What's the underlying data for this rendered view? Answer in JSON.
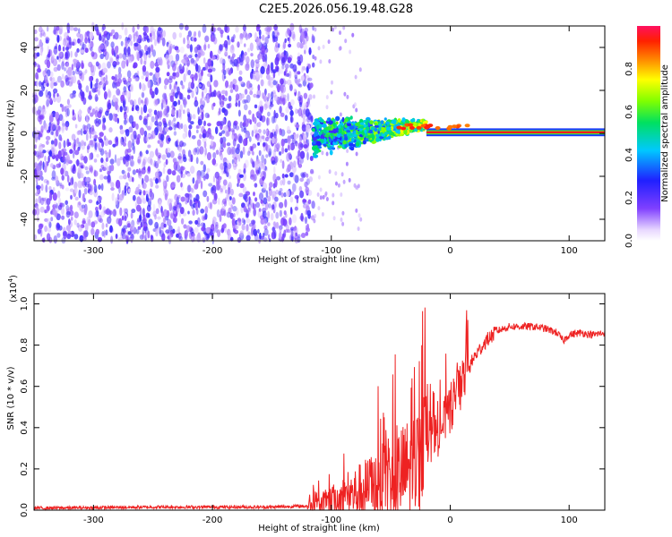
{
  "title": "C2E5.2026.056.19.48.G28",
  "chart_data": [
    {
      "type": "heatmap",
      "xlabel": "Height of straight line (km)",
      "ylabel": "Frequency (Hz)",
      "xlim": [
        -350,
        130
      ],
      "ylim": [
        -50,
        50
      ],
      "x_ticks": [
        -300,
        -200,
        -100,
        0,
        100
      ],
      "y_ticks": [
        -40,
        -20,
        0,
        20,
        40
      ],
      "regions": [
        {
          "x_range": [
            -350,
            -115
          ],
          "freq_range": [
            -50,
            50
          ],
          "amplitude": [
            0.05,
            0.25
          ],
          "description": "broadband noise"
        },
        {
          "x_range": [
            -115,
            -20
          ],
          "freq_center_start": -2,
          "freq_center_end": 4,
          "spread_hz": 10,
          "amplitude": [
            0.2,
            0.6
          ]
        },
        {
          "x_range": [
            -20,
            130
          ],
          "freq_center": 0.5,
          "spread_hz": 2,
          "amplitude": [
            0.85,
            0.95
          ],
          "description": "carrier line"
        }
      ],
      "colorbar": {
        "label": "Normalized spectral amplitude",
        "range": [
          0.0,
          1.0
        ],
        "ticks": [
          "0.0",
          "0.2",
          "0.4",
          "0.6",
          "0.8"
        ]
      }
    },
    {
      "type": "line",
      "xlabel": "Height of straight line (km)",
      "ylabel": "SNR (10 * v/v)",
      "exponent_label": "(x10",
      "exponent_power": "4",
      "xlim": [
        -350,
        130
      ],
      "ylim": [
        0.0,
        1.05
      ],
      "x_ticks": [
        -300,
        -200,
        -100,
        0,
        100
      ],
      "y_ticks": [
        "0.0",
        "0.2",
        "0.4",
        "0.6",
        "0.8",
        "1.0"
      ],
      "color": "#ee2222",
      "series": [
        {
          "name": "SNR",
          "x": [
            -350,
            -300,
            -250,
            -200,
            -150,
            -120,
            -100,
            -80,
            -60,
            -40,
            -30,
            -20,
            -10,
            0,
            10,
            20,
            30,
            40,
            50,
            60,
            70,
            80,
            90,
            95,
            100,
            110,
            120,
            130
          ],
          "y": [
            0.01,
            0.012,
            0.015,
            0.015,
            0.015,
            0.02,
            0.04,
            0.08,
            0.12,
            0.18,
            0.22,
            0.3,
            0.38,
            0.48,
            0.62,
            0.74,
            0.82,
            0.87,
            0.89,
            0.89,
            0.89,
            0.88,
            0.86,
            0.82,
            0.85,
            0.86,
            0.85,
            0.86
          ]
        }
      ]
    }
  ]
}
